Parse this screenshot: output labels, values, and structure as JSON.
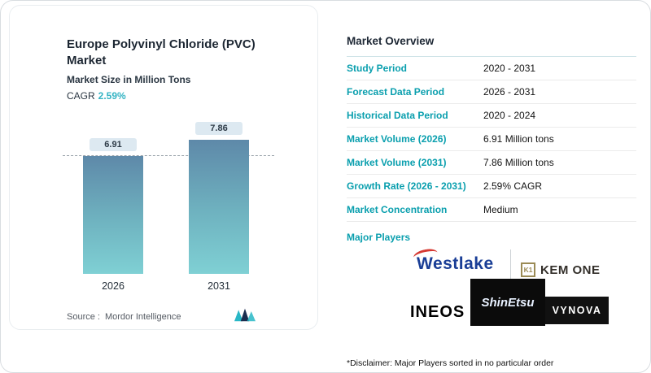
{
  "left_panel": {
    "title": "Europe Polyvinyl Chloride (PVC) Market",
    "subtitle": "Market Size in Million Tons",
    "cagr_label": "CAGR",
    "cagr_value": "2.59%",
    "source_label": "Source :",
    "source_value": "Mordor Intelligence"
  },
  "chart_data": {
    "type": "bar",
    "categories": [
      "2026",
      "2031"
    ],
    "values": [
      6.91,
      7.86
    ],
    "title": "Europe Polyvinyl Chloride (PVC) Market",
    "xlabel": "",
    "ylabel": "Market Size in Million Tons",
    "ylim": [
      0,
      9
    ],
    "grid": false,
    "annotations": [
      "dashed horizontal reference line at 2026 value (6.91)"
    ],
    "bar_gradient": {
      "top": "#5e89a9",
      "bottom": "#7fd0d4"
    }
  },
  "overview": {
    "title": "Market Overview",
    "rows": [
      {
        "label": "Study Period",
        "value": "2020 - 2031"
      },
      {
        "label": "Forecast Data Period",
        "value": "2026 - 2031"
      },
      {
        "label": "Historical Data Period",
        "value": "2020 - 2024"
      },
      {
        "label": "Market Volume (2026)",
        "value": "6.91 Million tons"
      },
      {
        "label": "Market Volume (2031)",
        "value": "7.86 Million tons"
      },
      {
        "label": "Growth Rate (2026 - 2031)",
        "value": "2.59% CAGR"
      },
      {
        "label": "Market Concentration",
        "value": "Medium"
      }
    ],
    "major_players_label": "Major Players",
    "players": {
      "westlake": "Westlake",
      "kemone_icon": "K1",
      "kemone": "KEM ONE",
      "ineos": "INEOS",
      "shinetsu": "ShinEtsu",
      "vynova": "VYNOVA"
    },
    "disclaimer": "*Disclaimer: Major Players sorted in no particular order"
  },
  "colors": {
    "accent_teal": "#0a9fae",
    "cagr_teal": "#35b4c4",
    "dark_text": "#1d2733"
  }
}
